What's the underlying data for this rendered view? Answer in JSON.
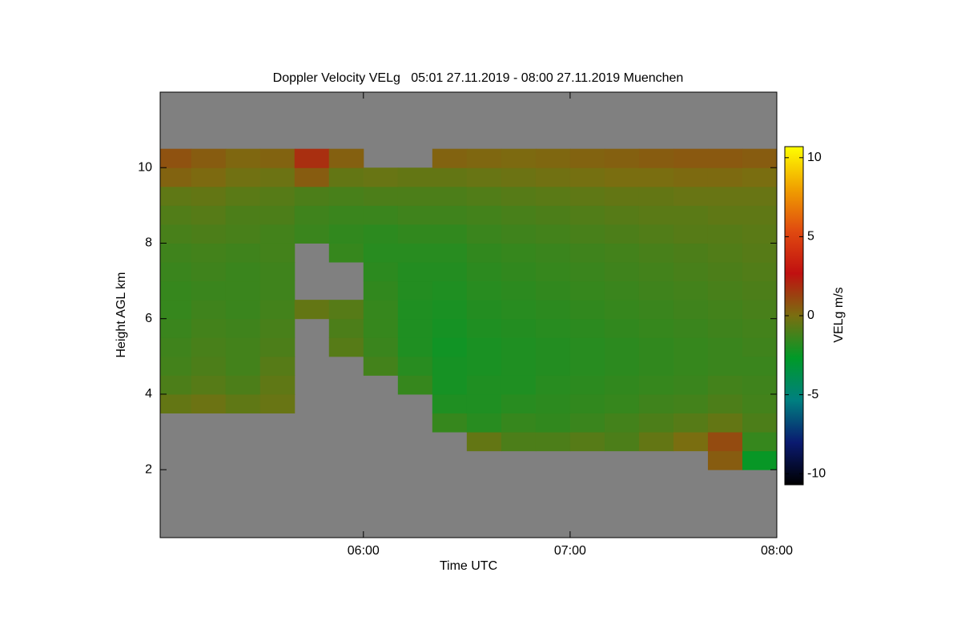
{
  "chart_data": {
    "type": "heatmap",
    "title": "Doppler Velocity VELg   05:01 27.11.2019 - 08:00 27.11.2019 Muenchen",
    "x_label": "Time UTC",
    "y_label": "Height AGL km",
    "colorbar_label": "VELg m/s",
    "xlim": [
      1,
      180
    ],
    "xticks": [
      {
        "value": 60,
        "label": "06:00"
      },
      {
        "value": 120,
        "label": "07:00"
      },
      {
        "value": 180,
        "label": "08:00"
      }
    ],
    "ylim": [
      0.2,
      12
    ],
    "yticks": [
      2,
      4,
      6,
      8,
      10
    ],
    "zlim": [
      -10.7,
      10.7
    ],
    "zticks": [
      -10,
      -5,
      0,
      5,
      10
    ],
    "colormap": [
      "#000000",
      "#0a1a70",
      "#008080",
      "#009a28",
      "#7a6e10",
      "#c01010",
      "#e04a10",
      "#f0a000",
      "#ffff00"
    ],
    "nodata_color": "#808080",
    "x_edges": [
      1,
      10,
      20,
      30,
      40,
      50,
      60,
      70,
      80,
      90,
      100,
      110,
      120,
      130,
      140,
      150,
      160,
      170,
      180
    ],
    "y_edges": [
      2,
      2.5,
      3,
      3.5,
      4,
      4.5,
      5,
      5.5,
      6,
      6.5,
      7,
      7.5,
      8,
      8.5,
      9,
      9.5,
      10,
      10.5
    ],
    "values": [
      [
        null,
        null,
        null,
        null,
        null,
        null,
        null,
        null,
        null,
        null,
        null,
        null,
        null,
        null,
        null,
        null,
        0.5,
        -2.5
      ],
      [
        null,
        null,
        null,
        null,
        null,
        null,
        null,
        null,
        null,
        -0.5,
        -1,
        -1,
        -0.8,
        -1,
        -0.5,
        0,
        1,
        -1.5
      ],
      [
        null,
        null,
        null,
        null,
        null,
        null,
        null,
        null,
        -1.5,
        -1.8,
        -1.5,
        -1.6,
        -1.4,
        -1.2,
        -1,
        -0.8,
        -0.5,
        -1
      ],
      [
        -0.5,
        -0.3,
        -0.6,
        -0.4,
        null,
        null,
        null,
        null,
        -2,
        -2,
        -1.8,
        -1.7,
        -1.6,
        -1.5,
        -1.3,
        -1.2,
        -1,
        -1.2
      ],
      [
        -1,
        -0.8,
        -1,
        -0.6,
        null,
        null,
        null,
        -1.5,
        -2.2,
        -2,
        -2,
        -1.8,
        -1.7,
        -1.6,
        -1.5,
        -1.4,
        -1.2,
        -1.3
      ],
      [
        -1.2,
        -1,
        -1.2,
        -0.8,
        null,
        null,
        -1.2,
        -1.8,
        -2.2,
        -2.1,
        -2,
        -1.9,
        -1.8,
        -1.7,
        -1.6,
        -1.5,
        -1.4,
        -1.4
      ],
      [
        -1.3,
        -1.1,
        -1.2,
        -1,
        null,
        -0.8,
        -1.4,
        -2,
        -2.3,
        -2.1,
        -2,
        -1.9,
        -1.8,
        -1.7,
        -1.6,
        -1.5,
        -1.4,
        -1.3
      ],
      [
        -1.4,
        -1.2,
        -1.3,
        -1.1,
        null,
        -1,
        -1.5,
        -2,
        -2.2,
        -2,
        -1.9,
        -1.8,
        -1.7,
        -1.6,
        -1.5,
        -1.4,
        -1.3,
        -1.2
      ],
      [
        -1.5,
        -1.3,
        -1.4,
        -1.2,
        -0.5,
        -0.8,
        -1.5,
        -2,
        -2.1,
        -1.9,
        -1.8,
        -1.7,
        -1.6,
        -1.5,
        -1.4,
        -1.3,
        -1.2,
        -1.1
      ],
      [
        -1.5,
        -1.4,
        -1.4,
        -1.3,
        null,
        null,
        -1.6,
        -1.9,
        -2,
        -1.8,
        -1.7,
        -1.6,
        -1.5,
        -1.4,
        -1.3,
        -1.2,
        -1.1,
        -1
      ],
      [
        -1.4,
        -1.3,
        -1.4,
        -1.3,
        null,
        null,
        -1.7,
        -1.9,
        -1.9,
        -1.7,
        -1.6,
        -1.5,
        -1.4,
        -1.3,
        -1.2,
        -1.1,
        -1,
        -0.9
      ],
      [
        -1.3,
        -1.2,
        -1.3,
        -1.2,
        null,
        -1.5,
        -1.8,
        -1.8,
        -1.8,
        -1.6,
        -1.5,
        -1.4,
        -1.3,
        -1.2,
        -1.1,
        -1,
        -0.9,
        -0.8
      ],
      [
        -1.1,
        -1,
        -1.1,
        -1.2,
        -1.4,
        -1.6,
        -1.7,
        -1.6,
        -1.6,
        -1.4,
        -1.3,
        -1.2,
        -1.1,
        -1,
        -0.9,
        -0.8,
        -0.8,
        -0.7
      ],
      [
        -0.9,
        -0.8,
        -1,
        -1,
        -1.3,
        -1.4,
        -1.4,
        -1.3,
        -1.3,
        -1.2,
        -1.1,
        -1,
        -0.9,
        -0.8,
        -0.7,
        -0.7,
        -0.6,
        -0.6
      ],
      [
        -0.6,
        -0.5,
        -0.7,
        -0.8,
        -1,
        -1.1,
        -1,
        -1,
        -1,
        -0.9,
        -0.8,
        -0.7,
        -0.6,
        -0.5,
        -0.5,
        -0.4,
        -0.4,
        -0.4
      ],
      [
        0.3,
        0.1,
        -0.2,
        -0.3,
        0.5,
        -0.5,
        -0.4,
        -0.5,
        -0.5,
        -0.4,
        -0.3,
        -0.2,
        -0.1,
        0,
        0,
        0.1,
        0.1,
        0
      ],
      [
        0.8,
        0.5,
        0.2,
        0.3,
        1.8,
        0.4,
        null,
        null,
        0.3,
        0.2,
        0.1,
        0.2,
        0.3,
        0.4,
        0.5,
        0.6,
        0.6,
        0.5
      ]
    ]
  }
}
